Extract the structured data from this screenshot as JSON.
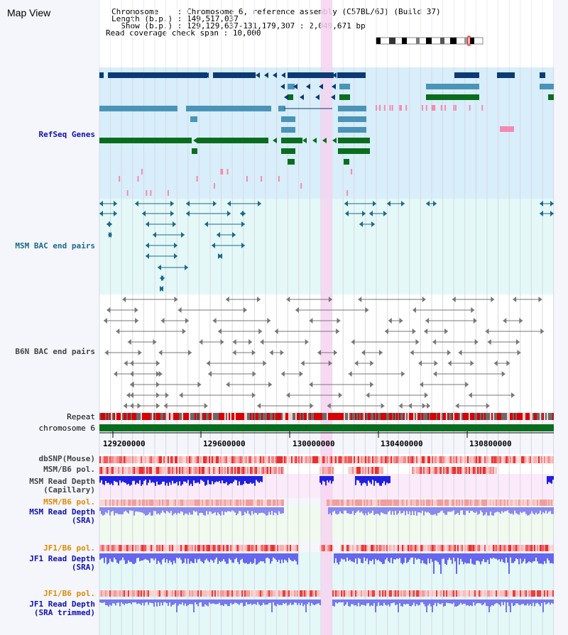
{
  "app": {
    "title": "Map View"
  },
  "info": {
    "chromosome_key": "Chromosome    : ",
    "chromosome_val": "Chromosome 6, reference assembly (C57BL/6J) (Build 37)",
    "length_key": "Length (b.p.) : ",
    "length_val": "149,517,037",
    "show_key": "  Show (b.p.) : ",
    "show_val": "129,129,637-131,179,307 : 2,049,671 bp",
    "span_key": "Read coverage check span : ",
    "span_val": "10,000"
  },
  "tracks": {
    "refseq": "RefSeq Genes",
    "msm_bac": "MSM BAC end pairs",
    "b6n_bac": "B6N BAC end pairs",
    "repeat": "Repeat",
    "chromosome": "chromosome 6",
    "dbsnp": "dbSNP(Mouse)",
    "msm_b6_pol": "MSM/B6 pol.",
    "msm_depth_cap_1": "MSM Read Depth",
    "msm_depth_cap_2": "(Capillary)",
    "msm_b6_pol2": "MSM/B6 pol.",
    "msm_depth_sra_1": "MSM Read Depth",
    "msm_depth_sra_2": "(SRA)",
    "jf1_pol": "JF1/B6 pol.",
    "jf1_depth_1": "JF1 Read Depth",
    "jf1_depth_2": "(SRA)",
    "jf1_pol2": "JF1/B6 pol.",
    "jf1_trim_1": "JF1 Read Depth",
    "jf1_trim_2": "(SRA trimmed)"
  },
  "axis": {
    "ticks": [
      "129200000",
      "129600000",
      "130000000",
      "130400000",
      "130800000"
    ]
  },
  "colors": {
    "refseq_bg": "#d8eefa",
    "msm_bg": "#e4f8f8",
    "highlight": "#f6d3f0",
    "gene_dark": "#0b3a74",
    "gene_mid": "#4a94b8",
    "gene_green": "#0a6d1e",
    "chromosome_bar": "#0a6d1e",
    "label_blue": "#1010b0",
    "label_teal": "#1a6a8a",
    "label_orange": "#e08a00"
  }
}
